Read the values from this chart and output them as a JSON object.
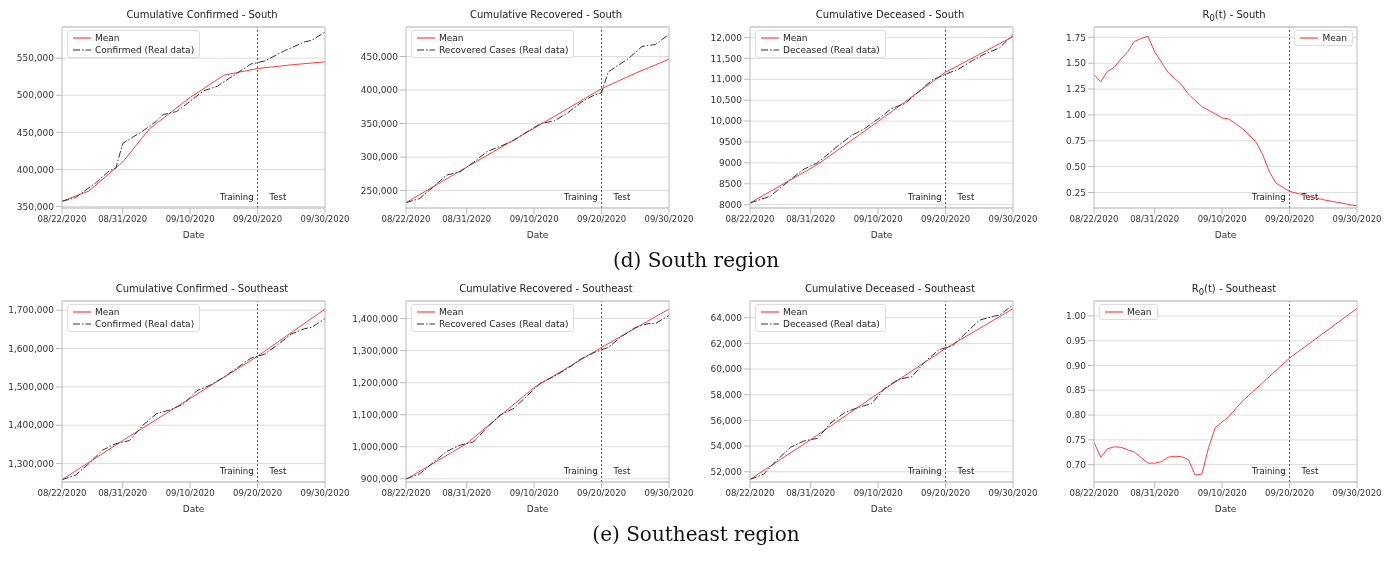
{
  "chart_data": [
    {
      "type": "line",
      "title": "Cumulative Confirmed - South",
      "xlabel": "Date",
      "xlim": [
        "2020-08-22",
        "2020-09-30"
      ],
      "xticks": [
        {
          "value": "2020-08-22",
          "label": "08/22/2020"
        },
        {
          "value": "2020-08-31",
          "label": "08/31/2020"
        },
        {
          "value": "2020-09-10",
          "label": "09/10/2020"
        },
        {
          "value": "2020-09-20",
          "label": "09/20/2020"
        },
        {
          "value": "2020-09-30",
          "label": "09/30/2020"
        }
      ],
      "ylim": [
        348000,
        592000
      ],
      "yticks": [
        {
          "value": 350000,
          "label": "350,000"
        },
        {
          "value": 400000,
          "label": "400,000"
        },
        {
          "value": 450000,
          "label": "450,000"
        },
        {
          "value": 500000,
          "label": "500,000"
        },
        {
          "value": 550000,
          "label": "550,000"
        }
      ],
      "grid": "y",
      "legend": "top left",
      "ref_lines": [
        {
          "axis": "x",
          "value": "2020-09-20",
          "color": "#555555",
          "line_style": "dotted"
        }
      ],
      "annotations": [
        "Training",
        "Test"
      ],
      "series": [
        {
          "name": "Mean",
          "color": "#ff4040",
          "line_style": "solid",
          "x": [
            "2020-08-22",
            "2020-08-26",
            "2020-08-31",
            "2020-09-04",
            "2020-09-10",
            "2020-09-15",
            "2020-09-20",
            "2020-09-25",
            "2020-09-30"
          ],
          "values": [
            357000,
            371000,
            410000,
            455000,
            497000,
            527000,
            536000,
            541000,
            545000
          ]
        },
        {
          "name": "Confirmed (Real data)",
          "color": "#333333",
          "line_style": "dashed",
          "x": [
            "2020-08-22",
            "2020-08-24",
            "2020-08-27",
            "2020-08-29",
            "2020-08-30",
            "2020-08-31",
            "2020-09-03",
            "2020-09-05",
            "2020-09-06",
            "2020-09-08",
            "2020-09-10",
            "2020-09-12",
            "2020-09-14",
            "2020-09-17",
            "2020-09-19",
            "2020-09-21",
            "2020-09-24",
            "2020-09-27",
            "2020-09-28",
            "2020-09-30"
          ],
          "values": [
            357000,
            362000,
            382000,
            398000,
            402000,
            435000,
            452000,
            465000,
            474000,
            478000,
            492000,
            506000,
            512000,
            530000,
            542000,
            546000,
            560000,
            572000,
            574000,
            585000
          ]
        }
      ]
    },
    {
      "type": "line",
      "title": "Cumulative Recovered - South",
      "xlabel": "Date",
      "xlim": [
        "2020-08-22",
        "2020-09-30"
      ],
      "xticks": [
        {
          "value": "2020-08-22",
          "label": "08/22/2020"
        },
        {
          "value": "2020-08-31",
          "label": "08/31/2020"
        },
        {
          "value": "2020-09-10",
          "label": "09/10/2020"
        },
        {
          "value": "2020-09-20",
          "label": "09/20/2020"
        },
        {
          "value": "2020-09-30",
          "label": "09/30/2020"
        }
      ],
      "ylim": [
        224000,
        494000
      ],
      "yticks": [
        {
          "value": 250000,
          "label": "250,000"
        },
        {
          "value": 300000,
          "label": "300,000"
        },
        {
          "value": 350000,
          "label": "350,000"
        },
        {
          "value": 400000,
          "label": "400,000"
        },
        {
          "value": 450000,
          "label": "450,000"
        }
      ],
      "grid": "y",
      "legend": "top left",
      "ref_lines": [
        {
          "axis": "x",
          "value": "2020-09-20",
          "color": "#555555",
          "line_style": "dotted"
        }
      ],
      "annotations": [
        "Training",
        "Test"
      ],
      "series": [
        {
          "name": "Mean",
          "color": "#ff4040",
          "line_style": "solid",
          "x": [
            "2020-08-22",
            "2020-08-31",
            "2020-09-10",
            "2020-09-20",
            "2020-09-25",
            "2020-09-30"
          ],
          "values": [
            232000,
            285000,
            343000,
            402000,
            425000,
            446000
          ]
        },
        {
          "name": "Recovered Cases (Real data)",
          "color": "#333333",
          "line_style": "dashed",
          "x": [
            "2020-08-22",
            "2020-08-24",
            "2020-08-26",
            "2020-08-28",
            "2020-08-30",
            "2020-09-01",
            "2020-09-03",
            "2020-09-05",
            "2020-09-07",
            "2020-09-09",
            "2020-09-11",
            "2020-09-13",
            "2020-09-15",
            "2020-09-17",
            "2020-09-19",
            "2020-09-20",
            "2020-09-21",
            "2020-09-24",
            "2020-09-26",
            "2020-09-28",
            "2020-09-30"
          ],
          "values": [
            232000,
            238000,
            255000,
            273000,
            278000,
            292000,
            308000,
            316000,
            325000,
            338000,
            350000,
            354000,
            366000,
            382000,
            393000,
            396000,
            427000,
            447000,
            465000,
            468000,
            483000
          ]
        }
      ]
    },
    {
      "type": "line",
      "title": "Cumulative Deceased - South",
      "xlabel": "Date",
      "xlim": [
        "2020-08-22",
        "2020-09-30"
      ],
      "xticks": [
        {
          "value": "2020-08-22",
          "label": "08/22/2020"
        },
        {
          "value": "2020-08-31",
          "label": "08/31/2020"
        },
        {
          "value": "2020-09-10",
          "label": "09/10/2020"
        },
        {
          "value": "2020-09-20",
          "label": "09/20/2020"
        },
        {
          "value": "2020-09-30",
          "label": "09/30/2020"
        }
      ],
      "ylim": [
        7920,
        12250
      ],
      "yticks": [
        8000,
        8500,
        9000,
        9500,
        {
          "value": 10000,
          "label": "10,000"
        },
        {
          "value": 10500,
          "label": "10,500"
        },
        {
          "value": 11000,
          "label": "11,000"
        },
        {
          "value": 11500,
          "label": "11,500"
        },
        {
          "value": 12000,
          "label": "12,000"
        }
      ],
      "grid": "y",
      "legend": "top left",
      "ref_lines": [
        {
          "axis": "x",
          "value": "2020-09-20",
          "color": "#555555",
          "line_style": "dotted"
        }
      ],
      "annotations": [
        "Training",
        "Test"
      ],
      "series": [
        {
          "name": "Mean",
          "color": "#ff4040",
          "line_style": "solid",
          "x": [
            "2020-08-22",
            "2020-09-01",
            "2020-09-10",
            "2020-09-20",
            "2020-09-30"
          ],
          "values": [
            8040,
            8960,
            9990,
            11170,
            12020
          ]
        },
        {
          "name": "Deceased (Real data)",
          "color": "#333333",
          "line_style": "dashed",
          "x": [
            "2020-08-22",
            "2020-08-25",
            "2020-08-28",
            "2020-08-30",
            "2020-09-01",
            "2020-09-04",
            "2020-09-06",
            "2020-09-08",
            "2020-09-10",
            "2020-09-12",
            "2020-09-14",
            "2020-09-16",
            "2020-09-18",
            "2020-09-20",
            "2020-09-22",
            "2020-09-24",
            "2020-09-26",
            "2020-09-28",
            "2020-09-30"
          ],
          "values": [
            8040,
            8200,
            8600,
            8850,
            9000,
            9400,
            9650,
            9820,
            10050,
            10300,
            10420,
            10700,
            10980,
            11120,
            11250,
            11450,
            11620,
            11750,
            12070
          ]
        }
      ]
    },
    {
      "type": "line",
      "title": "R$_{0}$(t) - South",
      "xlabel": "Date",
      "xlim": [
        "2020-08-22",
        "2020-09-30"
      ],
      "xticks": [
        {
          "value": "2020-08-22",
          "label": "08/22/2020"
        },
        {
          "value": "2020-08-31",
          "label": "08/31/2020"
        },
        {
          "value": "2020-09-10",
          "label": "09/10/2020"
        },
        {
          "value": "2020-09-20",
          "label": "09/20/2020"
        },
        {
          "value": "2020-09-30",
          "label": "09/30/2020"
        }
      ],
      "ylim": [
        0.1,
        1.85
      ],
      "yticks": [
        {
          "value": 0.25,
          "label": "0.25"
        },
        {
          "value": 0.5,
          "label": "0.50"
        },
        {
          "value": 0.75,
          "label": "0.75"
        },
        {
          "value": 1,
          "label": "1.00"
        },
        {
          "value": 1.25,
          "label": "1.25"
        },
        {
          "value": 1.5,
          "label": "1.50"
        },
        {
          "value": 1.75,
          "label": "1.75"
        }
      ],
      "grid": "y",
      "legend": "top right",
      "ref_lines": [
        {
          "axis": "x",
          "value": "2020-09-20",
          "color": "#555555",
          "line_style": "dotted"
        }
      ],
      "annotations": [
        "Training",
        "Test"
      ],
      "series": [
        {
          "name": "Mean",
          "color": "#ff4040",
          "line_style": "solid",
          "x": [
            "2020-08-22",
            "2020-08-23",
            "2020-08-24",
            "2020-08-25",
            "2020-08-26",
            "2020-08-27",
            "2020-08-28",
            "2020-08-29",
            "2020-08-30",
            "2020-08-31",
            "2020-09-02",
            "2020-09-04",
            "2020-09-05",
            "2020-09-07",
            "2020-09-09",
            "2020-09-10",
            "2020-09-11",
            "2020-09-13",
            "2020-09-15",
            "2020-09-16",
            "2020-09-17",
            "2020-09-18",
            "2020-09-20",
            "2020-09-25",
            "2020-09-30"
          ],
          "values": [
            1.39,
            1.32,
            1.42,
            1.46,
            1.54,
            1.61,
            1.71,
            1.74,
            1.76,
            1.61,
            1.41,
            1.29,
            1.2,
            1.08,
            1.01,
            0.97,
            0.96,
            0.87,
            0.74,
            0.62,
            0.45,
            0.34,
            0.26,
            0.18,
            0.12
          ]
        }
      ]
    },
    {
      "type": "other",
      "annotations": [
        "(d) South region"
      ]
    },
    {
      "type": "line",
      "title": "Cumulative Confirmed - Southeast",
      "xlabel": "Date",
      "xlim": [
        "2020-08-22",
        "2020-09-30"
      ],
      "xticks": [
        {
          "value": "2020-08-22",
          "label": "08/22/2020"
        },
        {
          "value": "2020-08-31",
          "label": "08/31/2020"
        },
        {
          "value": "2020-09-10",
          "label": "09/10/2020"
        },
        {
          "value": "2020-09-20",
          "label": "09/20/2020"
        },
        {
          "value": "2020-09-30",
          "label": "09/30/2020"
        }
      ],
      "ylim": [
        1252000,
        1724000
      ],
      "yticks": [
        {
          "value": 1300000,
          "label": "1,300,000"
        },
        {
          "value": 1400000,
          "label": "1,400,000"
        },
        {
          "value": 1500000,
          "label": "1,500,000"
        },
        {
          "value": 1600000,
          "label": "1,600,000"
        },
        {
          "value": 1700000,
          "label": "1,700,000"
        }
      ],
      "grid": "y",
      "legend": "top left",
      "ref_lines": [
        {
          "axis": "x",
          "value": "2020-09-20",
          "color": "#555555",
          "line_style": "dotted"
        }
      ],
      "annotations": [
        "Training",
        "Test"
      ],
      "series": [
        {
          "name": "Mean",
          "color": "#ff4040",
          "line_style": "solid",
          "x": [
            "2020-08-22",
            "2020-08-31",
            "2020-09-10",
            "2020-09-20",
            "2020-09-30"
          ],
          "values": [
            1258000,
            1360000,
            1470000,
            1580000,
            1703000
          ]
        },
        {
          "name": "Confirmed (Real data)",
          "color": "#333333",
          "line_style": "dashed",
          "x": [
            "2020-08-22",
            "2020-08-24",
            "2020-08-26",
            "2020-08-28",
            "2020-08-30",
            "2020-09-01",
            "2020-09-03",
            "2020-09-05",
            "2020-09-07",
            "2020-09-09",
            "2020-09-11",
            "2020-09-13",
            "2020-09-15",
            "2020-09-17",
            "2020-09-19",
            "2020-09-21",
            "2020-09-23",
            "2020-09-25",
            "2020-09-27",
            "2020-09-28",
            "2020-09-30"
          ],
          "values": [
            1258000,
            1270000,
            1300000,
            1335000,
            1352000,
            1360000,
            1400000,
            1430000,
            1440000,
            1455000,
            1490000,
            1505000,
            1525000,
            1550000,
            1575000,
            1585000,
            1610000,
            1638000,
            1652000,
            1655000,
            1678000
          ]
        }
      ]
    },
    {
      "type": "line",
      "title": "Cumulative Recovered - Southeast",
      "xlabel": "Date",
      "xlim": [
        "2020-08-22",
        "2020-09-30"
      ],
      "xticks": [
        {
          "value": "2020-08-22",
          "label": "08/22/2020"
        },
        {
          "value": "2020-08-31",
          "label": "08/31/2020"
        },
        {
          "value": "2020-09-10",
          "label": "09/10/2020"
        },
        {
          "value": "2020-09-20",
          "label": "09/20/2020"
        },
        {
          "value": "2020-09-30",
          "label": "09/30/2020"
        }
      ],
      "ylim": [
        890000,
        1455000
      ],
      "yticks": [
        {
          "value": 900000,
          "label": "900,000"
        },
        {
          "value": 1000000,
          "label": "1,000,000"
        },
        {
          "value": 1100000,
          "label": "1,100,000"
        },
        {
          "value": 1200000,
          "label": "1,200,000"
        },
        {
          "value": 1300000,
          "label": "1,300,000"
        },
        {
          "value": 1400000,
          "label": "1,400,000"
        }
      ],
      "grid": "y",
      "legend": "top left",
      "ref_lines": [
        {
          "axis": "x",
          "value": "2020-09-20",
          "color": "#555555",
          "line_style": "dotted"
        }
      ],
      "annotations": [
        "Training",
        "Test"
      ],
      "series": [
        {
          "name": "Mean",
          "color": "#ff4040",
          "line_style": "solid",
          "x": [
            "2020-08-22",
            "2020-08-31",
            "2020-09-10",
            "2020-09-20",
            "2020-09-30"
          ],
          "values": [
            898000,
            1010000,
            1185000,
            1310000,
            1430000
          ]
        },
        {
          "name": "Recovered Cases (Real data)",
          "color": "#333333",
          "line_style": "dashed",
          "x": [
            "2020-08-22",
            "2020-08-24",
            "2020-08-26",
            "2020-08-28",
            "2020-08-30",
            "2020-09-01",
            "2020-09-03",
            "2020-09-05",
            "2020-09-07",
            "2020-09-09",
            "2020-09-11",
            "2020-09-13",
            "2020-09-15",
            "2020-09-17",
            "2020-09-19",
            "2020-09-21",
            "2020-09-23",
            "2020-09-25",
            "2020-09-27",
            "2020-09-28",
            "2020-09-30"
          ],
          "values": [
            900000,
            915000,
            950000,
            985000,
            1005000,
            1015000,
            1060000,
            1100000,
            1120000,
            1160000,
            1200000,
            1220000,
            1245000,
            1275000,
            1295000,
            1310000,
            1345000,
            1372000,
            1385000,
            1385000,
            1410000
          ]
        }
      ]
    },
    {
      "type": "line",
      "title": "Cumulative Deceased - Southeast",
      "xlabel": "Date",
      "xlim": [
        "2020-08-22",
        "2020-09-30"
      ],
      "xticks": [
        {
          "value": "2020-08-22",
          "label": "08/22/2020"
        },
        {
          "value": "2020-08-31",
          "label": "08/31/2020"
        },
        {
          "value": "2020-09-10",
          "label": "09/10/2020"
        },
        {
          "value": "2020-09-20",
          "label": "09/20/2020"
        },
        {
          "value": "2020-09-30",
          "label": "09/30/2020"
        }
      ],
      "ylim": [
        51200,
        65300
      ],
      "yticks": [
        {
          "value": 52000,
          "label": "52,000"
        },
        {
          "value": 54000,
          "label": "54,000"
        },
        {
          "value": 56000,
          "label": "56,000"
        },
        {
          "value": 58000,
          "label": "58,000"
        },
        {
          "value": 60000,
          "label": "60,000"
        },
        {
          "value": 62000,
          "label": "62,000"
        },
        {
          "value": 64000,
          "label": "64,000"
        }
      ],
      "grid": "y",
      "legend": "top left",
      "ref_lines": [
        {
          "axis": "x",
          "value": "2020-09-20",
          "color": "#555555",
          "line_style": "dotted"
        }
      ],
      "annotations": [
        "Training",
        "Test"
      ],
      "series": [
        {
          "name": "Mean",
          "color": "#ff4040",
          "line_style": "solid",
          "x": [
            "2020-08-22",
            "2020-08-31",
            "2020-09-10",
            "2020-09-20",
            "2020-09-30"
          ],
          "values": [
            51400,
            54500,
            58100,
            61600,
            64700
          ]
        },
        {
          "name": "Deceased (Real data)",
          "color": "#333333",
          "line_style": "dashed",
          "x": [
            "2020-08-22",
            "2020-08-24",
            "2020-08-26",
            "2020-08-28",
            "2020-08-30",
            "2020-09-01",
            "2020-09-03",
            "2020-09-05",
            "2020-09-07",
            "2020-09-09",
            "2020-09-11",
            "2020-09-13",
            "2020-09-15",
            "2020-09-17",
            "2020-09-19",
            "2020-09-21",
            "2020-09-23",
            "2020-09-25",
            "2020-09-27",
            "2020-09-28",
            "2020-09-30"
          ],
          "values": [
            51400,
            51800,
            52900,
            53900,
            54400,
            54600,
            55800,
            56600,
            57000,
            57300,
            58500,
            59200,
            59400,
            60600,
            61500,
            61800,
            62800,
            63800,
            64100,
            64200,
            65000
          ]
        }
      ]
    },
    {
      "type": "line",
      "title": "R$_{0}$(t) - Southeast",
      "xlabel": "Date",
      "xlim": [
        "2020-08-22",
        "2020-09-30"
      ],
      "xticks": [
        {
          "value": "2020-08-22",
          "label": "08/22/2020"
        },
        {
          "value": "2020-08-31",
          "label": "08/31/2020"
        },
        {
          "value": "2020-09-10",
          "label": "09/10/2020"
        },
        {
          "value": "2020-09-20",
          "label": "09/20/2020"
        },
        {
          "value": "2020-09-30",
          "label": "09/30/2020"
        }
      ],
      "ylim": [
        0.665,
        1.03
      ],
      "yticks": [
        {
          "value": 0.7,
          "label": "0.70"
        },
        {
          "value": 0.75,
          "label": "0.75"
        },
        {
          "value": 0.8,
          "label": "0.80"
        },
        {
          "value": 0.85,
          "label": "0.85"
        },
        {
          "value": 0.9,
          "label": "0.90"
        },
        {
          "value": 0.95,
          "label": "0.95"
        },
        {
          "value": 1,
          "label": "1.00"
        }
      ],
      "grid": "y",
      "legend": "top left",
      "ref_lines": [
        {
          "axis": "x",
          "value": "2020-09-20",
          "color": "#555555",
          "line_style": "dotted"
        }
      ],
      "annotations": [
        "Training",
        "Test"
      ],
      "series": [
        {
          "name": "Mean",
          "color": "#ff4040",
          "line_style": "solid",
          "x": [
            "2020-08-22",
            "2020-08-23",
            "2020-08-24",
            "2020-08-25",
            "2020-08-26",
            "2020-08-28",
            "2020-08-30",
            "2020-08-31",
            "2020-09-01",
            "2020-09-02",
            "2020-09-03",
            "2020-09-04",
            "2020-09-05",
            "2020-09-06",
            "2020-09-07",
            "2020-09-08",
            "2020-09-09",
            "2020-09-11",
            "2020-09-13",
            "2020-09-16",
            "2020-09-20",
            "2020-09-25",
            "2020-09-30"
          ],
          "values": [
            0.745,
            0.715,
            0.732,
            0.736,
            0.735,
            0.725,
            0.703,
            0.703,
            0.706,
            0.715,
            0.717,
            0.716,
            0.71,
            0.679,
            0.681,
            0.735,
            0.775,
            0.797,
            0.828,
            0.865,
            0.915,
            0.965,
            1.015
          ]
        }
      ]
    },
    {
      "type": "other",
      "annotations": [
        "(e) Southeast region"
      ]
    }
  ]
}
